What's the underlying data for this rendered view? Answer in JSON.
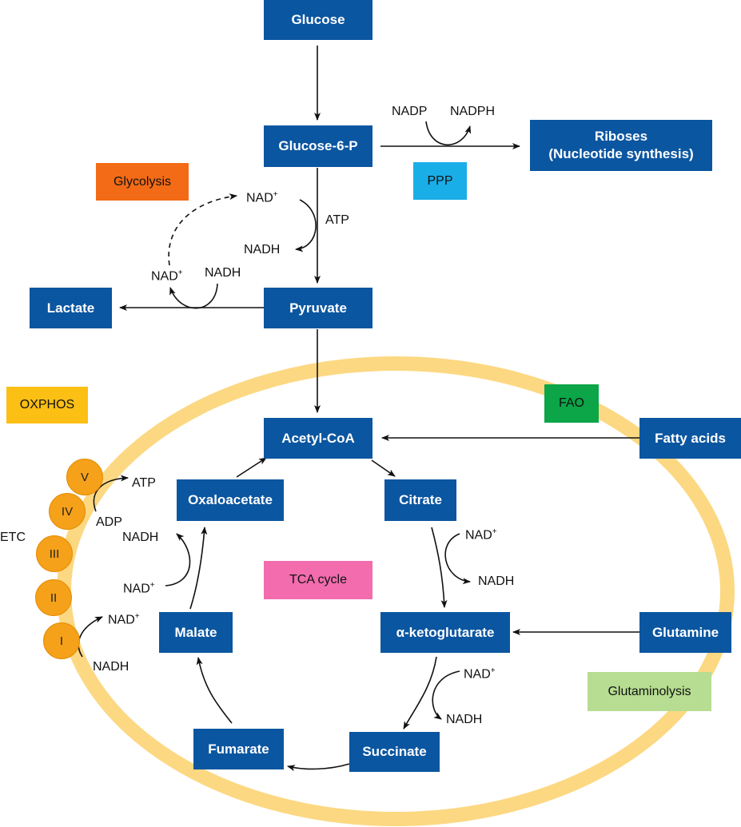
{
  "colors": {
    "node": "#0b56a0",
    "ring": "#fcd882",
    "complex": "#f5a11a",
    "arrow": "#111111"
  },
  "nodes": {
    "glucose": "Glucose",
    "glucose6p": "Glucose-6-P",
    "riboses_line1": "Riboses",
    "riboses_line2": "(Nucleotide synthesis)",
    "pyruvate": "Pyruvate",
    "lactate": "Lactate",
    "acetyl_coa": "Acetyl-CoA",
    "fatty_acids": "Fatty acids",
    "oxaloacetate": "Oxaloacetate",
    "citrate": "Citrate",
    "alpha_ketoglutarate": "α-ketoglutarate",
    "glutamine": "Glutamine",
    "malate": "Malate",
    "fumarate": "Fumarate",
    "succinate": "Succinate"
  },
  "pathway_labels": {
    "glycolysis": {
      "text": "Glycolysis",
      "color": "#f36b16"
    },
    "ppp": {
      "text": "PPP",
      "color": "#19aee8"
    },
    "oxphos": {
      "text": "OXPHOS",
      "color": "#fcbf14"
    },
    "fao": {
      "text": "FAO",
      "color": "#0ca548"
    },
    "tca_cycle": {
      "text": "TCA cycle",
      "color": "#f26cae"
    },
    "glutaminolysis": {
      "text": "Glutaminolysis",
      "color": "#b6dd91"
    }
  },
  "cofactors": {
    "nadp": "NADP",
    "nadph": "NADPH",
    "nad_plus": "NAD",
    "plus": "+",
    "nadh": "NADH",
    "atp": "ATP",
    "adp": "ADP"
  },
  "etc": {
    "label": "ETC",
    "complexes": [
      "V",
      "IV",
      "III",
      "II",
      "I"
    ]
  }
}
